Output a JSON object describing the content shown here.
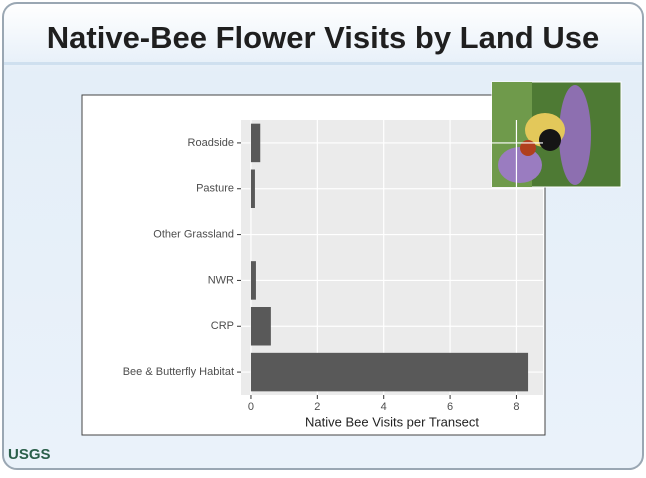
{
  "logo": "USGS",
  "chart_data": {
    "type": "bar",
    "orientation": "horizontal",
    "title": "Native-Bee Flower Visits by Land Use",
    "x_label": "Native Bee Visits per Transect",
    "categories": [
      "Roadside",
      "Pasture",
      "Other Grassland",
      "NWR",
      "CRP",
      "Bee & Butterfly Habitat"
    ],
    "values": [
      0.28,
      0.12,
      0,
      0.15,
      0.6,
      8.35
    ],
    "color": "#595959",
    "xlim": [
      -0.3,
      8.8
    ],
    "xticks": [
      0,
      2,
      4,
      6,
      8
    ],
    "grid": true
  }
}
